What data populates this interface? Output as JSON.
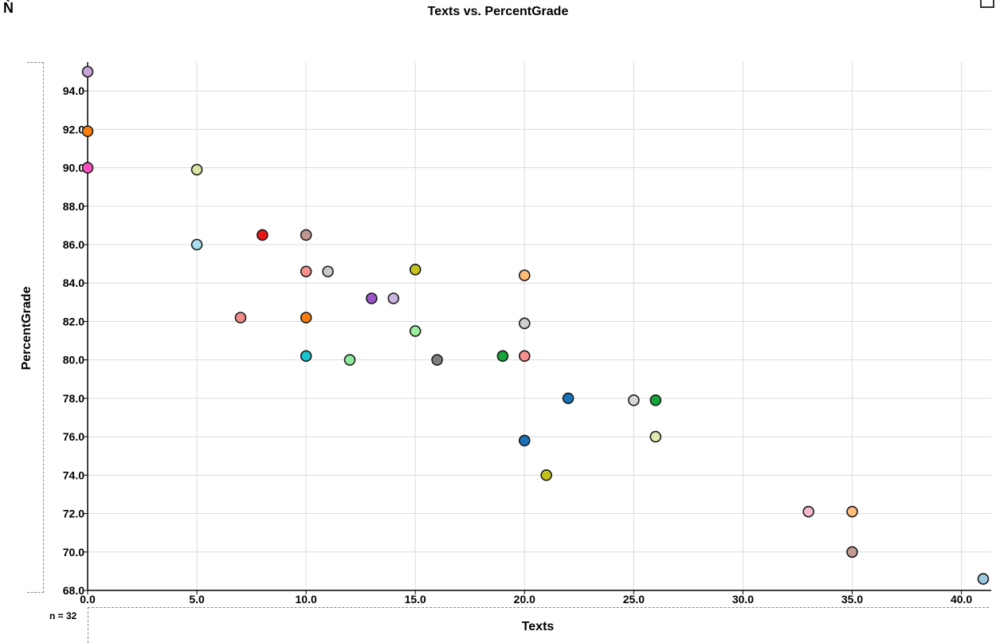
{
  "chart_data": {
    "type": "scatter",
    "title": "Texts vs. PercentGrade",
    "xlabel": "Texts",
    "ylabel": "PercentGrade",
    "n_label": "n = 32",
    "xlim": [
      0,
      41
    ],
    "ylim": [
      68,
      95
    ],
    "x_ticks": [
      "0.0",
      "5.0",
      "10.0",
      "15.0",
      "20.0",
      "25.0",
      "30.0",
      "35.0",
      "40.0"
    ],
    "y_ticks": [
      "68.0",
      "70.0",
      "72.0",
      "74.0",
      "76.0",
      "78.0",
      "80.0",
      "82.0",
      "84.0",
      "86.0",
      "88.0",
      "90.0",
      "92.0",
      "94.0"
    ],
    "grid": true,
    "points": [
      {
        "x": 0,
        "y": 95.0,
        "color": "#c9a3d6"
      },
      {
        "x": 0,
        "y": 91.9,
        "color": "#ff7f0e"
      },
      {
        "x": 0,
        "y": 90.0,
        "color": "#ff4fc0"
      },
      {
        "x": 5,
        "y": 89.9,
        "color": "#dbe3a0"
      },
      {
        "x": 5,
        "y": 86.0,
        "color": "#a8dff0"
      },
      {
        "x": 7,
        "y": 82.2,
        "color": "#f28c8c"
      },
      {
        "x": 8,
        "y": 86.5,
        "color": "#e8151a"
      },
      {
        "x": 10,
        "y": 86.5,
        "color": "#c29691"
      },
      {
        "x": 10,
        "y": 84.6,
        "color": "#f78f8f"
      },
      {
        "x": 10,
        "y": 82.2,
        "color": "#f57c10"
      },
      {
        "x": 10,
        "y": 80.2,
        "color": "#19c4cf"
      },
      {
        "x": 11,
        "y": 84.6,
        "color": "#c9c9c9"
      },
      {
        "x": 12,
        "y": 80.0,
        "color": "#8eea9a"
      },
      {
        "x": 13,
        "y": 83.2,
        "color": "#9b56c7"
      },
      {
        "x": 14,
        "y": 83.2,
        "color": "#cbb4dd"
      },
      {
        "x": 15,
        "y": 84.7,
        "color": "#c2c21c"
      },
      {
        "x": 15,
        "y": 81.5,
        "color": "#9bee9b"
      },
      {
        "x": 16,
        "y": 80.0,
        "color": "#7f7f7f"
      },
      {
        "x": 19,
        "y": 80.2,
        "color": "#16a53a"
      },
      {
        "x": 20,
        "y": 84.4,
        "color": "#ffbb78"
      },
      {
        "x": 20,
        "y": 81.9,
        "color": "#cfcfcf"
      },
      {
        "x": 20,
        "y": 80.2,
        "color": "#f78f8f"
      },
      {
        "x": 20,
        "y": 75.8,
        "color": "#1a73b8"
      },
      {
        "x": 21,
        "y": 74.0,
        "color": "#c2c21c"
      },
      {
        "x": 22,
        "y": 78.0,
        "color": "#1a73b8"
      },
      {
        "x": 25,
        "y": 77.9,
        "color": "#d6d6d6"
      },
      {
        "x": 26,
        "y": 77.9,
        "color": "#16a53a"
      },
      {
        "x": 26,
        "y": 76.0,
        "color": "#e3e8b0"
      },
      {
        "x": 33,
        "y": 72.1,
        "color": "#f7b6d2"
      },
      {
        "x": 35,
        "y": 72.1,
        "color": "#ffbb78"
      },
      {
        "x": 35,
        "y": 70.0,
        "color": "#c49c94"
      },
      {
        "x": 41,
        "y": 68.6,
        "color": "#9ecae1"
      }
    ]
  }
}
